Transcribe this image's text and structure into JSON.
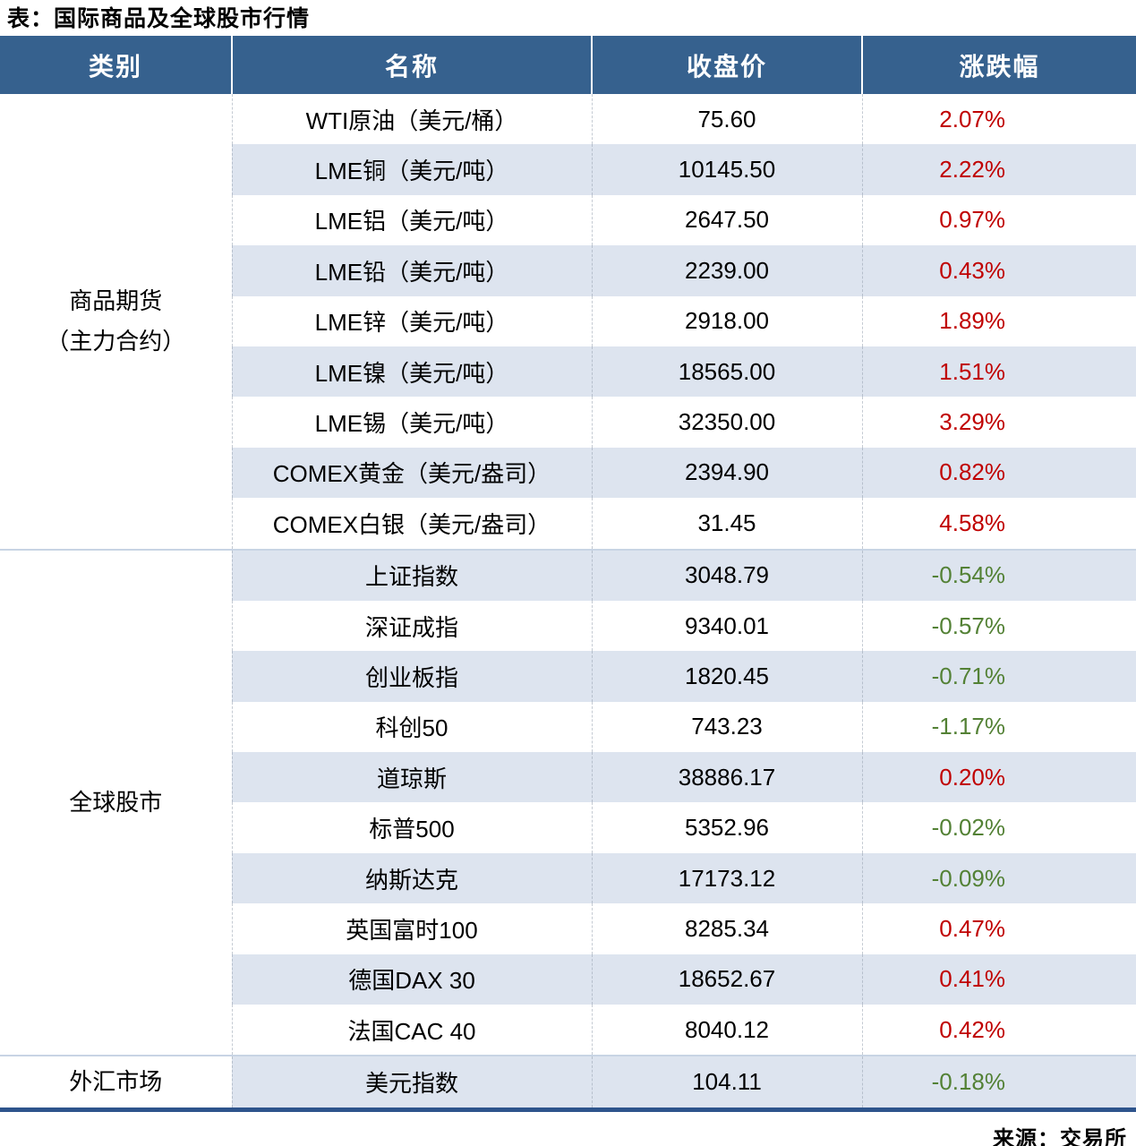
{
  "title": "表：国际商品及全球股市行情",
  "footer": {
    "source": "来源：交易所"
  },
  "colors": {
    "header_bg": "#36618E",
    "stripe_row_bg": "#DDE4EF",
    "positive_change": "#C00000",
    "negative_change": "#538135",
    "bottom_border": "#2E548C",
    "section_divider": "#C8D4E4"
  },
  "chart_data": {
    "type": "table",
    "title": "表：国际商品及全球股市行情",
    "columns": [
      "类别",
      "名称",
      "收盘价",
      "涨跌幅"
    ],
    "source": "来源：交易所",
    "sections": [
      {
        "category": "商品期货（主力合约）",
        "category_lines": [
          "商品期货",
          "（主力合约）"
        ],
        "rows": [
          {
            "name": "WTI原油（美元/桶）",
            "close": "75.60",
            "change": "2.07%",
            "direction": "up"
          },
          {
            "name": "LME铜（美元/吨）",
            "close": "10145.50",
            "change": "2.22%",
            "direction": "up"
          },
          {
            "name": "LME铝（美元/吨）",
            "close": "2647.50",
            "change": "0.97%",
            "direction": "up"
          },
          {
            "name": "LME铅（美元/吨）",
            "close": "2239.00",
            "change": "0.43%",
            "direction": "up"
          },
          {
            "name": "LME锌（美元/吨）",
            "close": "2918.00",
            "change": "1.89%",
            "direction": "up"
          },
          {
            "name": "LME镍（美元/吨）",
            "close": "18565.00",
            "change": "1.51%",
            "direction": "up"
          },
          {
            "name": "LME锡（美元/吨）",
            "close": "32350.00",
            "change": "3.29%",
            "direction": "up"
          },
          {
            "name": "COMEX黄金（美元/盎司）",
            "close": "2394.90",
            "change": "0.82%",
            "direction": "up"
          },
          {
            "name": "COMEX白银（美元/盎司）",
            "close": "31.45",
            "change": "4.58%",
            "direction": "up"
          }
        ]
      },
      {
        "category": "全球股市",
        "category_lines": [
          "全球股市"
        ],
        "rows": [
          {
            "name": "上证指数",
            "close": "3048.79",
            "change": "-0.54%",
            "direction": "down"
          },
          {
            "name": "深证成指",
            "close": "9340.01",
            "change": "-0.57%",
            "direction": "down"
          },
          {
            "name": "创业板指",
            "close": "1820.45",
            "change": "-0.71%",
            "direction": "down"
          },
          {
            "name": "科创50",
            "close": "743.23",
            "change": "-1.17%",
            "direction": "down"
          },
          {
            "name": "道琼斯",
            "close": "38886.17",
            "change": "0.20%",
            "direction": "up"
          },
          {
            "name": "标普500",
            "close": "5352.96",
            "change": "-0.02%",
            "direction": "down"
          },
          {
            "name": "纳斯达克",
            "close": "17173.12",
            "change": "-0.09%",
            "direction": "down"
          },
          {
            "name": "英国富时100",
            "close": "8285.34",
            "change": "0.47%",
            "direction": "up"
          },
          {
            "name": "德国DAX 30",
            "close": "18652.67",
            "change": "0.41%",
            "direction": "up"
          },
          {
            "name": "法国CAC 40",
            "close": "8040.12",
            "change": "0.42%",
            "direction": "up"
          }
        ]
      },
      {
        "category": "外汇市场",
        "category_lines": [
          "外汇市场"
        ],
        "rows": [
          {
            "name": "美元指数",
            "close": "104.11",
            "change": "-0.18%",
            "direction": "down"
          }
        ]
      }
    ]
  }
}
